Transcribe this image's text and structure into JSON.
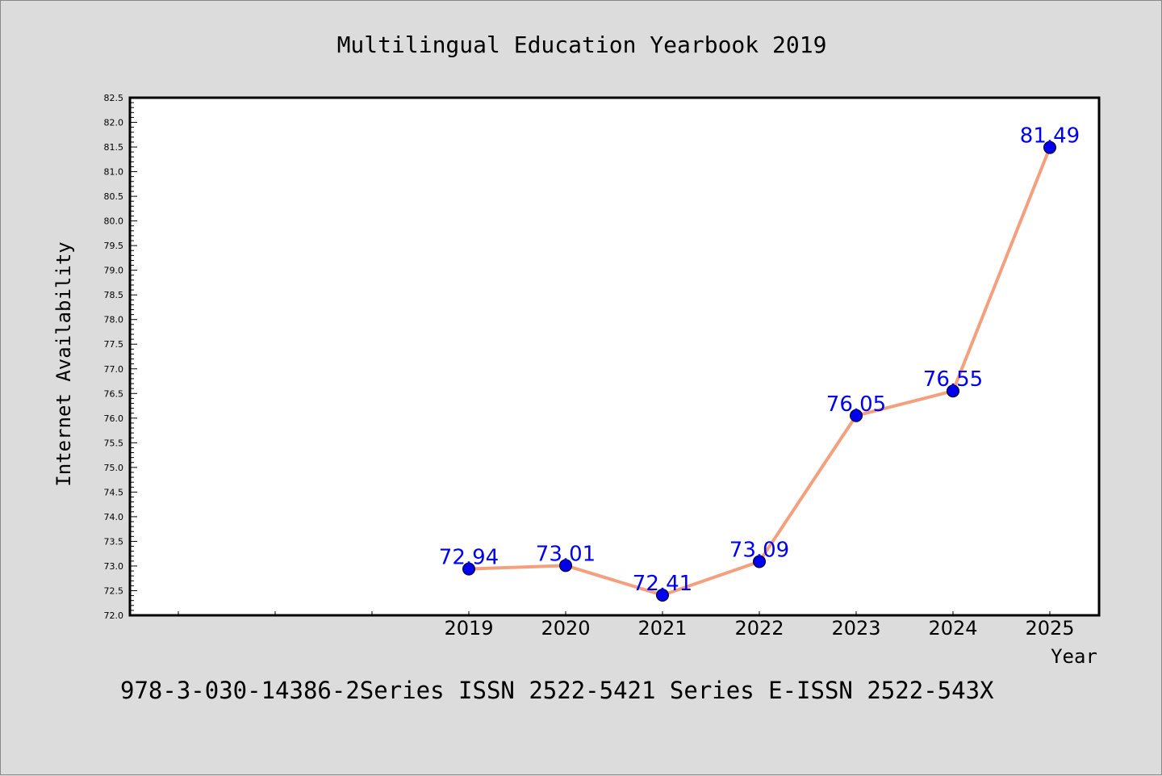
{
  "chart_data": {
    "type": "line",
    "title": "Multilingual Education Yearbook 2019",
    "xlabel": "Year",
    "ylabel": "Internet Availability",
    "footer": "978-3-030-14386-2Series ISSN 2522-5421 Series E-ISSN 2522-543X",
    "x": [
      "2019",
      "2020",
      "2021",
      "2022",
      "2023",
      "2024",
      "2025"
    ],
    "series": [
      {
        "values": [
          72.94,
          73.01,
          72.41,
          73.09,
          76.05,
          76.55,
          81.49
        ]
      }
    ],
    "data_labels": [
      "72.94",
      "73.01",
      "72.41",
      "73.09",
      "76.05",
      "76.55",
      "81.49"
    ],
    "ylim": [
      72.0,
      82.5
    ],
    "y_ticks": [
      "72.0",
      "72.5",
      "73.0",
      "73.5",
      "74.0",
      "74.5",
      "75.0",
      "75.5",
      "76.0",
      "76.5",
      "77.0",
      "77.5",
      "78.0",
      "78.5",
      "79.0",
      "79.5",
      "80.0",
      "80.5",
      "81.0",
      "81.5",
      "82.0",
      "82.5"
    ],
    "grid": false,
    "colors": {
      "line": "#f4a07e",
      "marker": "#0000ee",
      "label": "#0000ee",
      "background": "#dcdcdc",
      "plot_area": "#ffffff"
    }
  }
}
